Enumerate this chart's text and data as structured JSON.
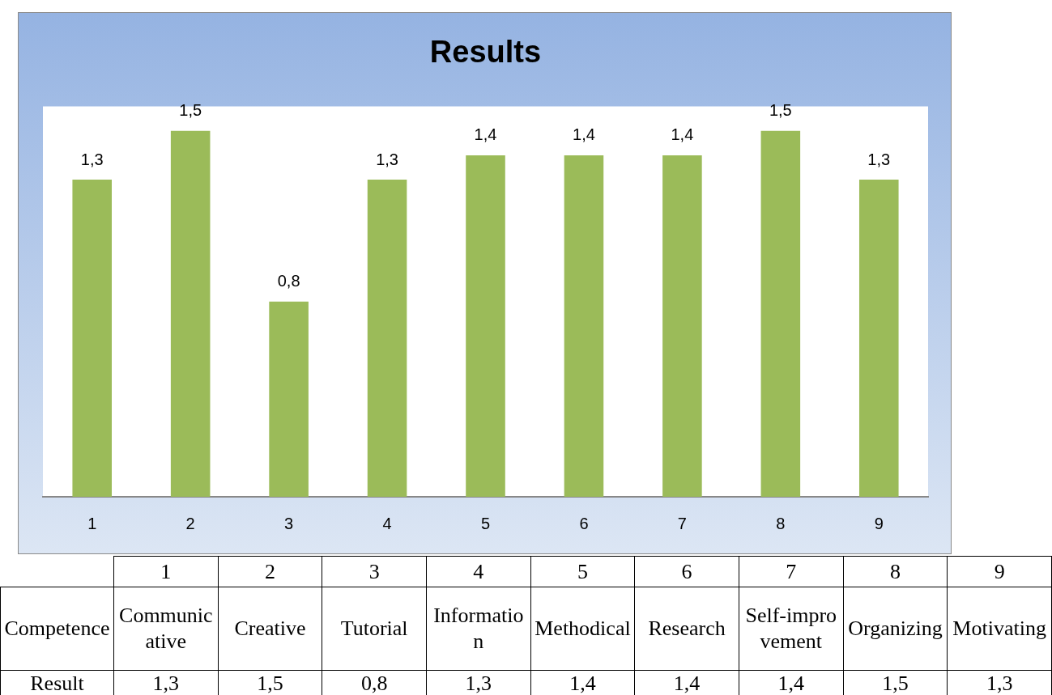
{
  "chart_data": {
    "type": "bar",
    "title": "Results",
    "categories": [
      "1",
      "2",
      "3",
      "4",
      "5",
      "6",
      "7",
      "8",
      "9"
    ],
    "values": [
      1.3,
      1.5,
      0.8,
      1.3,
      1.4,
      1.4,
      1.4,
      1.5,
      1.3
    ],
    "value_labels": [
      "1,3",
      "1,5",
      "0,8",
      "1,3",
      "1,4",
      "1,4",
      "1,4",
      "1,5",
      "1,3"
    ],
    "color": "#9bbb59",
    "ylim": [
      0,
      1.6
    ],
    "tick_labels": "x",
    "annotations": [
      "Competence",
      "Communicative",
      "Creative",
      "Tutorial",
      "Information",
      "Methodical",
      "Research",
      "Self-improvement",
      "Organizing",
      "Motivating",
      "Result"
    ]
  }
}
